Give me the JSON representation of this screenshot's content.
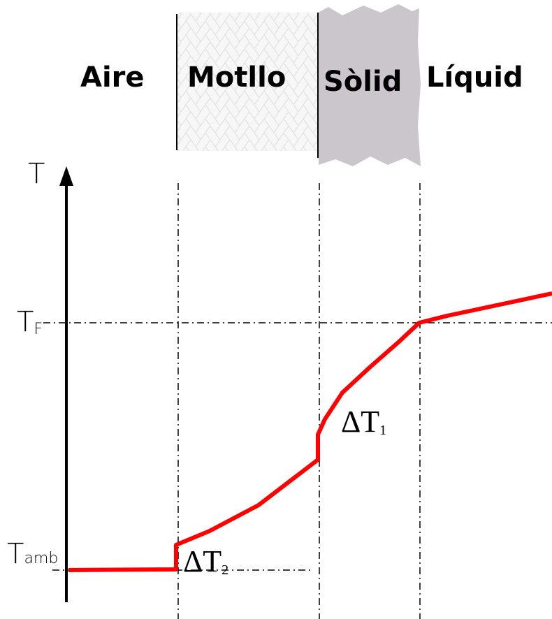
{
  "regions": [
    {
      "label": "Aire"
    },
    {
      "label": "Motllo"
    },
    {
      "label": "Sòlid"
    },
    {
      "label": "Líquid"
    }
  ],
  "axis": {
    "label": "T"
  },
  "levels": [
    {
      "main": "T",
      "sub": "F"
    },
    {
      "main": "T",
      "sub": "amb"
    }
  ],
  "jumps": [
    {
      "main": "ΔT",
      "sub": "1"
    },
    {
      "main": "ΔT",
      "sub": "2"
    }
  ]
}
